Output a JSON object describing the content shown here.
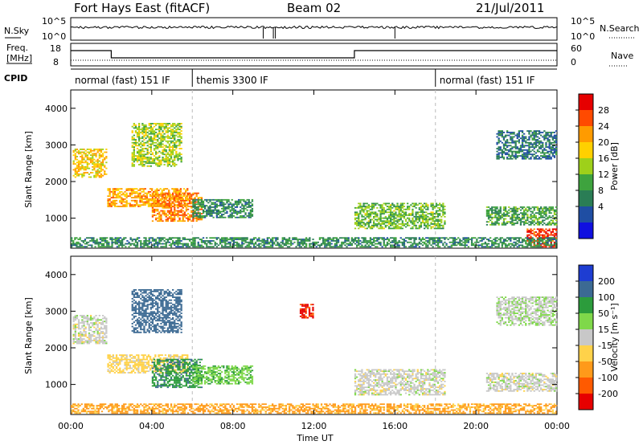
{
  "header": {
    "station": "Fort Hays East (fitACF)",
    "beam": "Beam 02",
    "date": "21/Jul/2011"
  },
  "noise_panel": {
    "left_label": "N.Sky",
    "right_label": "N.Search",
    "left_ticks": [
      "10^5",
      "10^0"
    ],
    "right_ticks": [
      "10^5",
      "10^0"
    ]
  },
  "freq_panel": {
    "left_label_1": "Freq.",
    "left_label_2": "[MHz]",
    "right_label": "Nave",
    "left_ticks": [
      "18",
      "8"
    ],
    "right_ticks": [
      "60",
      "0"
    ]
  },
  "cpid": {
    "label": "CPID",
    "modes": [
      {
        "name": "normal (fast) 151 IF",
        "start_hour": 0,
        "end_hour": 6
      },
      {
        "name": "themis 3300 IF",
        "start_hour": 6,
        "end_hour": 18
      },
      {
        "name": "normal (fast) 151 IF",
        "start_hour": 18,
        "end_hour": 24
      }
    ]
  },
  "power_panel": {
    "ylabel": "Slant Range [km]",
    "cbar_label": "Power [dB]",
    "cbar_ticks": [
      "28",
      "24",
      "20",
      "16",
      "12",
      "8",
      "4"
    ],
    "cbar_colors": [
      "#e60000",
      "#ff4a00",
      "#ff9b00",
      "#ffd000",
      "#9ed01a",
      "#3ea33e",
      "#2a7d55",
      "#1f4ea3",
      "#1010e0"
    ]
  },
  "velocity_panel": {
    "ylabel": "Slant Range [km]",
    "cbar_label": "Velocity [m s⁻¹]",
    "cbar_ticks": [
      "200",
      "100",
      "50",
      "15",
      "-15",
      "-50",
      "-100",
      "-200"
    ],
    "cbar_colors": [
      "#1e3dd2",
      "#3c6a93",
      "#2c9c3c",
      "#7fd84a",
      "#c8c8c8",
      "#ffd24a",
      "#ff9a1a",
      "#ff5a00",
      "#e60000"
    ]
  },
  "x_axis": {
    "label": "Time UT",
    "ticks": [
      "00:00",
      "04:00",
      "08:00",
      "12:00",
      "16:00",
      "20:00",
      "00:00"
    ]
  },
  "y_axis": {
    "ticks": [
      "1000",
      "2000",
      "3000",
      "4000"
    ]
  },
  "chart_data": [
    {
      "type": "heatmap",
      "title": "Power [dB]",
      "xlabel": "Time UT",
      "ylabel": "Slant Range [km]",
      "xlim": [
        0,
        24
      ],
      "ylim": [
        180,
        4500
      ],
      "color_scale": [
        4,
        8,
        12,
        16,
        20,
        24,
        28
      ],
      "echo_regions": [
        {
          "t": [
            0.1,
            1.8
          ],
          "r": [
            2100,
            2900
          ],
          "level": 18
        },
        {
          "t": [
            1.8,
            5.8
          ],
          "r": [
            1300,
            1800
          ],
          "level": 20
        },
        {
          "t": [
            4.0,
            6.5
          ],
          "r": [
            900,
            1700
          ],
          "level": 22
        },
        {
          "t": [
            3.0,
            5.5
          ],
          "r": [
            2400,
            3600
          ],
          "level": 14
        },
        {
          "t": [
            6.0,
            9.0
          ],
          "r": [
            1000,
            1500
          ],
          "level": 8
        },
        {
          "t": [
            14.0,
            18.5
          ],
          "r": [
            700,
            1400
          ],
          "level": 12
        },
        {
          "t": [
            20.5,
            24.0
          ],
          "r": [
            800,
            1300
          ],
          "level": 10
        },
        {
          "t": [
            21.0,
            24.0
          ],
          "r": [
            2600,
            3400
          ],
          "level": 6
        },
        {
          "t": [
            22.5,
            24.0
          ],
          "r": [
            200,
            700
          ],
          "level": 26
        },
        {
          "t": [
            0.0,
            24.0
          ],
          "r": [
            200,
            450
          ],
          "level": 8
        }
      ]
    },
    {
      "type": "heatmap",
      "title": "Velocity [m s-1]",
      "xlabel": "Time UT",
      "ylabel": "Slant Range [km]",
      "xlim": [
        0,
        24
      ],
      "ylim": [
        180,
        4500
      ],
      "color_scale": [
        -200,
        -100,
        -50,
        -15,
        15,
        50,
        100,
        200
      ],
      "echo_regions": [
        {
          "t": [
            0.1,
            1.8
          ],
          "r": [
            2100,
            2900
          ],
          "velocity": 0
        },
        {
          "t": [
            1.8,
            5.8
          ],
          "r": [
            1300,
            1800
          ],
          "velocity": -30
        },
        {
          "t": [
            4.0,
            6.5
          ],
          "r": [
            900,
            1700
          ],
          "velocity": 90
        },
        {
          "t": [
            3.0,
            5.5
          ],
          "r": [
            2400,
            3600
          ],
          "velocity": 180
        },
        {
          "t": [
            6.0,
            9.0
          ],
          "r": [
            1000,
            1500
          ],
          "velocity": 40
        },
        {
          "t": [
            11.3,
            12.0
          ],
          "r": [
            2800,
            3200
          ],
          "velocity": -200
        },
        {
          "t": [
            14.0,
            18.5
          ],
          "r": [
            700,
            1400
          ],
          "velocity": 0
        },
        {
          "t": [
            20.5,
            24.0
          ],
          "r": [
            800,
            1300
          ],
          "velocity": 0
        },
        {
          "t": [
            21.0,
            24.0
          ],
          "r": [
            2600,
            3400
          ],
          "velocity": 10
        },
        {
          "t": [
            0.0,
            24.0
          ],
          "r": [
            200,
            450
          ],
          "velocity": -60
        }
      ]
    }
  ]
}
